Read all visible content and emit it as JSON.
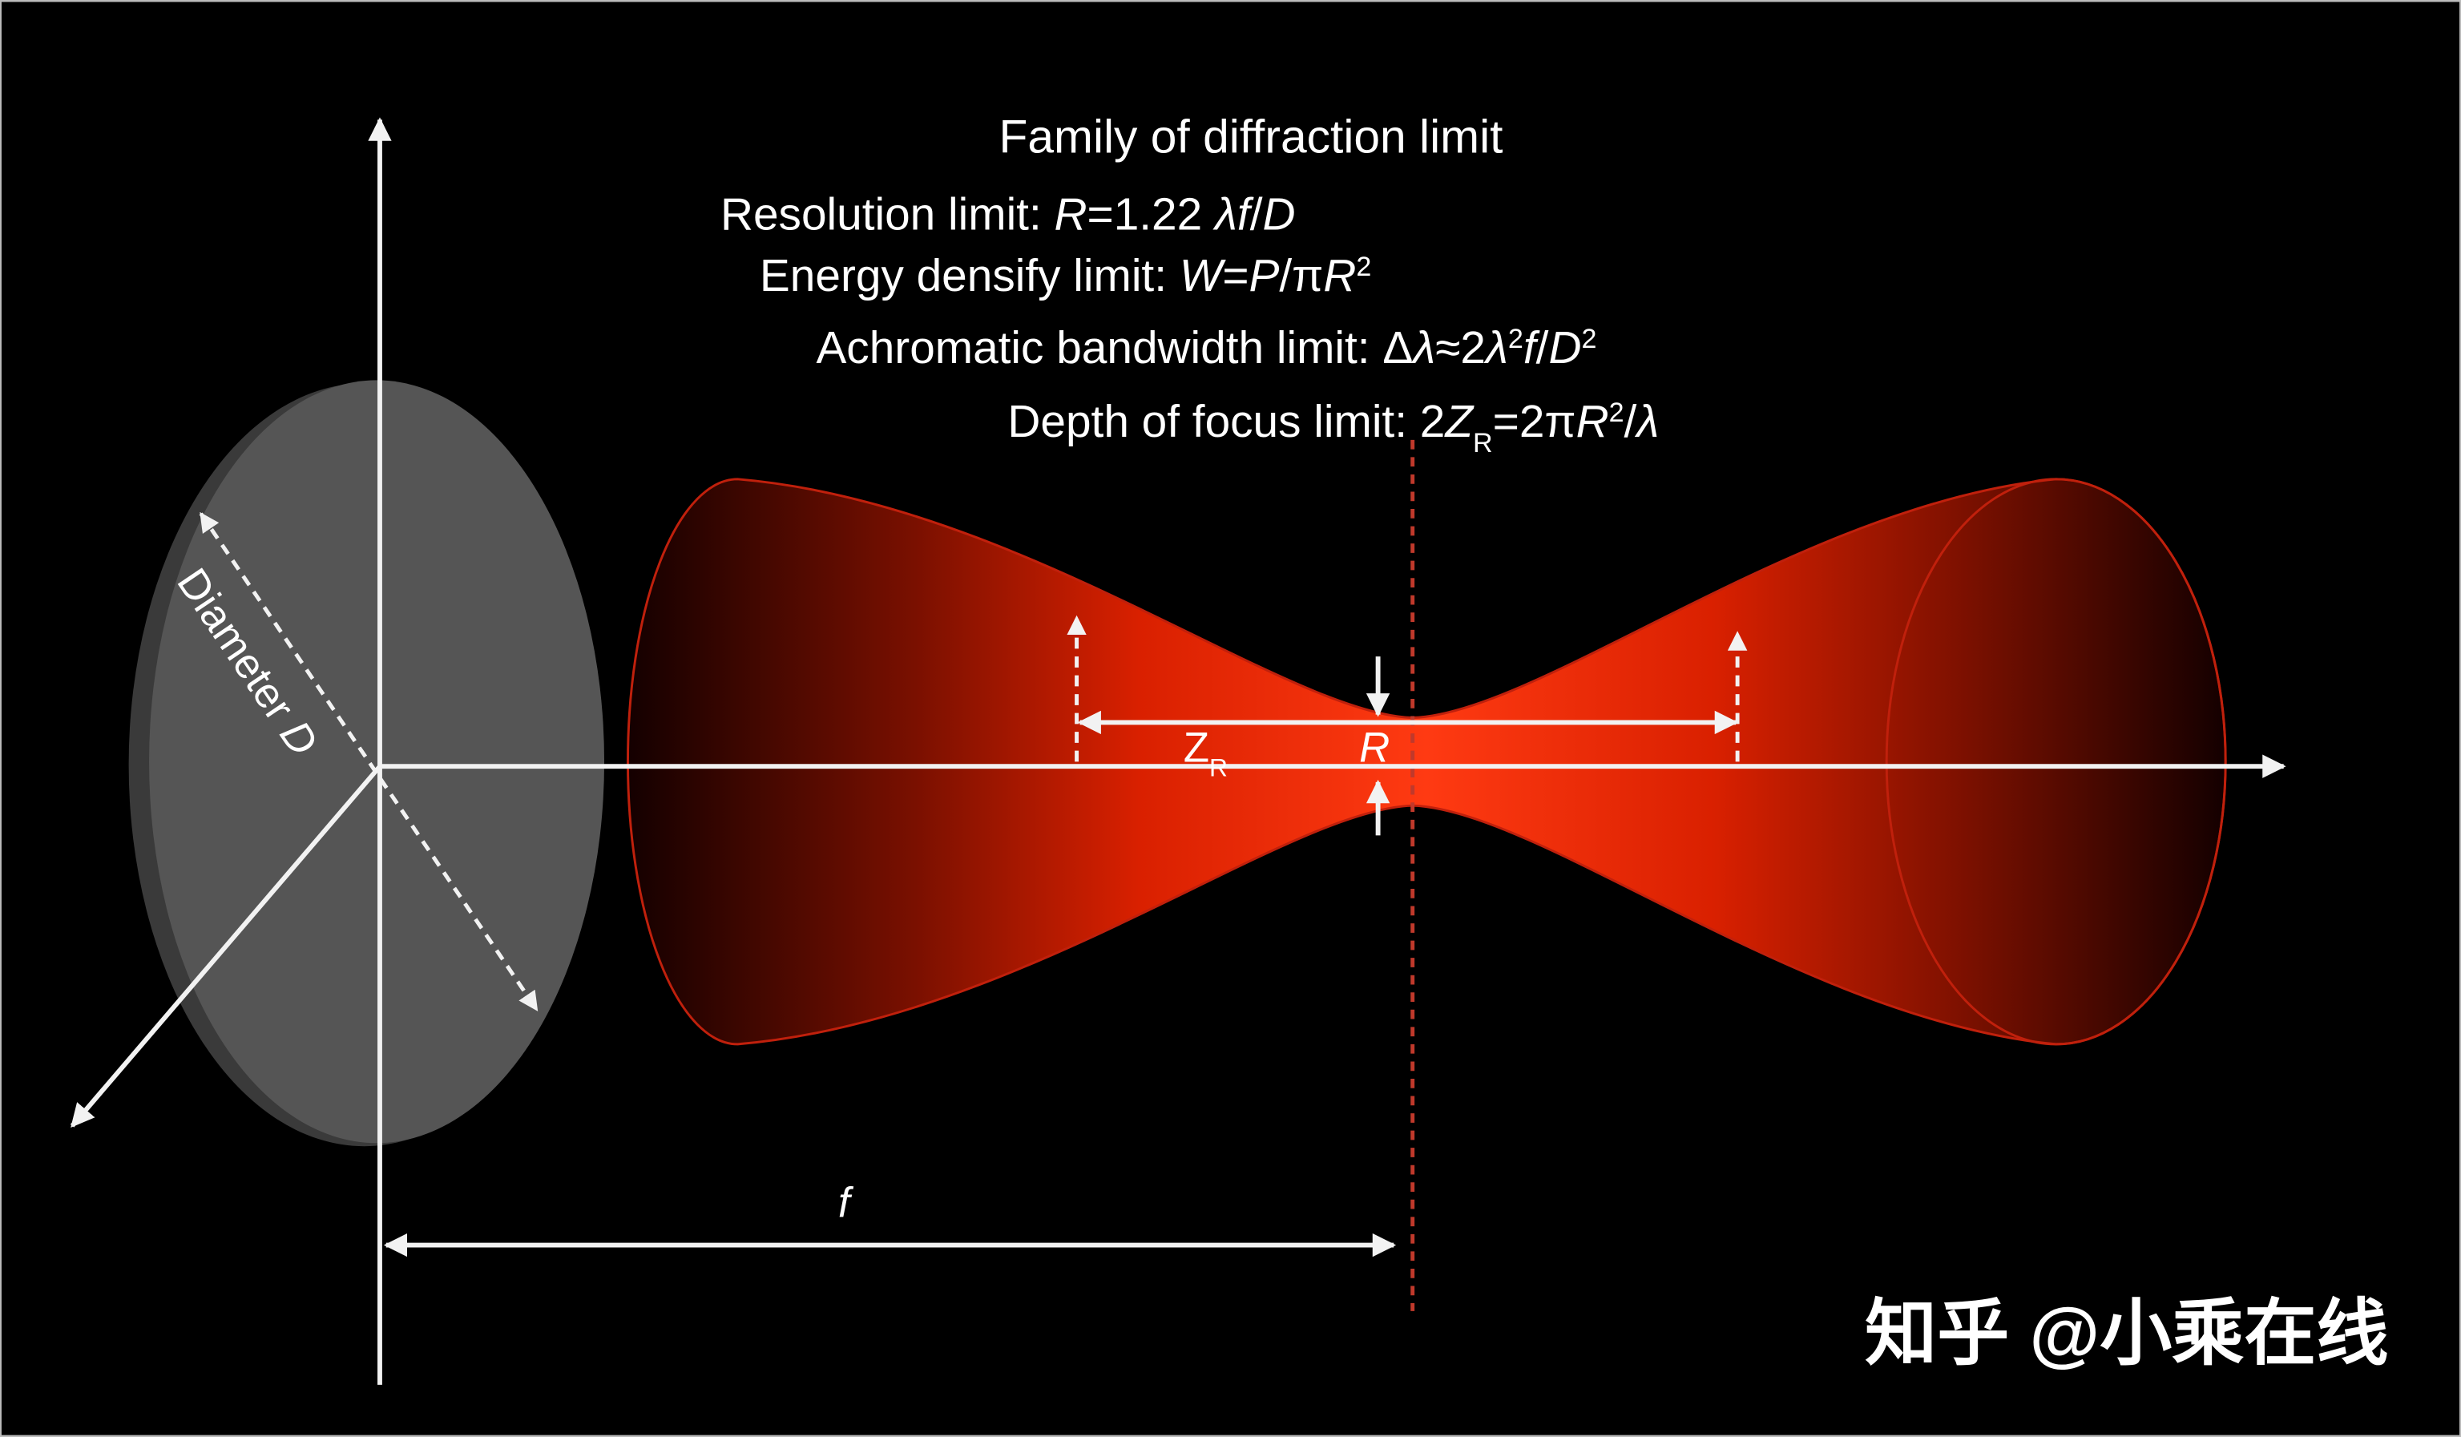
{
  "title": "Family of diffraction limit",
  "formulas": [
    {
      "label": "Resolution limit: ",
      "segments": [
        {
          "text": "R",
          "style": "italic"
        },
        {
          "text": "=1.22 ",
          "style": "normal"
        },
        {
          "text": "λf",
          "style": "italic"
        },
        {
          "text": "/",
          "style": "normal"
        },
        {
          "text": "D",
          "style": "italic"
        }
      ]
    },
    {
      "label": "Energy densify limit: ",
      "segments": [
        {
          "text": "W",
          "style": "italic"
        },
        {
          "text": "=",
          "style": "normal"
        },
        {
          "text": "P",
          "style": "italic"
        },
        {
          "text": "/π",
          "style": "normal"
        },
        {
          "text": "R",
          "style": "italic"
        },
        {
          "text": "2",
          "style": "sup"
        }
      ]
    },
    {
      "label": "Achromatic bandwidth limit: ",
      "segments": [
        {
          "text": "Δ",
          "style": "normal"
        },
        {
          "text": "λ",
          "style": "italic"
        },
        {
          "text": "≈2",
          "style": "normal"
        },
        {
          "text": "λ",
          "style": "italic"
        },
        {
          "text": "2",
          "style": "sup"
        },
        {
          "text": "f",
          "style": "italic"
        },
        {
          "text": "/",
          "style": "normal"
        },
        {
          "text": "D",
          "style": "italic"
        },
        {
          "text": "2",
          "style": "sup"
        }
      ]
    },
    {
      "label": "Depth of focus limit: ",
      "segments": [
        {
          "text": "2",
          "style": "normal"
        },
        {
          "text": "Z",
          "style": "italic"
        },
        {
          "text": "R",
          "style": "sub"
        },
        {
          "text": "=2π",
          "style": "normal"
        },
        {
          "text": "R",
          "style": "italic"
        },
        {
          "text": "2",
          "style": "sup"
        },
        {
          "text": "/",
          "style": "normal"
        },
        {
          "text": "λ",
          "style": "italic"
        }
      ]
    }
  ],
  "labels": {
    "diameter": [
      {
        "text": "Diameter ",
        "style": "normal"
      },
      {
        "text": "D",
        "style": "italic"
      }
    ],
    "rayleigh": [
      {
        "text": "Z",
        "style": "normal"
      },
      {
        "text": "R",
        "style": "sub"
      }
    ],
    "radius": [
      {
        "text": "R",
        "style": "italic"
      }
    ],
    "focal": [
      {
        "text": "f",
        "style": "italic"
      }
    ]
  },
  "watermark": "知乎 @小乘在线"
}
